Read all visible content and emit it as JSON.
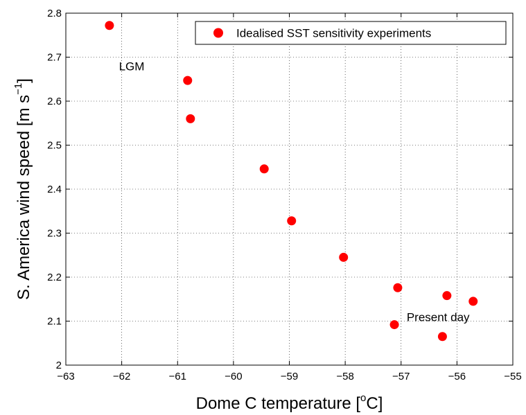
{
  "chart_data": {
    "type": "scatter",
    "xlabel": {
      "prefix": "Dome C temperature [",
      "sup": "o",
      "suffix": "C]"
    },
    "ylabel": {
      "prefix": "S. America wind speed [m s",
      "sup": "−1",
      "suffix": "]"
    },
    "xlim": [
      -63,
      -55
    ],
    "ylim": [
      2.0,
      2.8
    ],
    "xticks": [
      -63,
      -62,
      -61,
      -60,
      -59,
      -58,
      -57,
      -56,
      -55
    ],
    "xtick_labels": [
      "−63",
      "−62",
      "−61",
      "−60",
      "−59",
      "−58",
      "−57",
      "−56",
      "−55"
    ],
    "yticks": [
      2.0,
      2.1,
      2.2,
      2.3,
      2.4,
      2.5,
      2.6,
      2.7,
      2.8
    ],
    "ytick_labels": [
      "2",
      "2.1",
      "2.2",
      "2.3",
      "2.4",
      "2.5",
      "2.6",
      "2.7",
      "2.8"
    ],
    "grid": true,
    "legend_position": "top-right",
    "series": [
      {
        "name": "Idealised SST sensitivity experiments",
        "color": "#ff0000",
        "marker": "filled-circle",
        "points": [
          {
            "x": -62.22,
            "y": 2.772
          },
          {
            "x": -60.82,
            "y": 2.647
          },
          {
            "x": -60.77,
            "y": 2.56
          },
          {
            "x": -59.45,
            "y": 2.446
          },
          {
            "x": -58.96,
            "y": 2.328
          },
          {
            "x": -58.03,
            "y": 2.245
          },
          {
            "x": -57.06,
            "y": 2.176
          },
          {
            "x": -57.12,
            "y": 2.092
          },
          {
            "x": -56.18,
            "y": 2.158
          },
          {
            "x": -55.71,
            "y": 2.145
          },
          {
            "x": -56.26,
            "y": 2.065
          }
        ]
      }
    ],
    "annotations": [
      {
        "text": "LGM",
        "x": -62.05,
        "y": 2.67
      },
      {
        "text": "Present day",
        "x": -56.9,
        "y": 2.1
      }
    ]
  }
}
